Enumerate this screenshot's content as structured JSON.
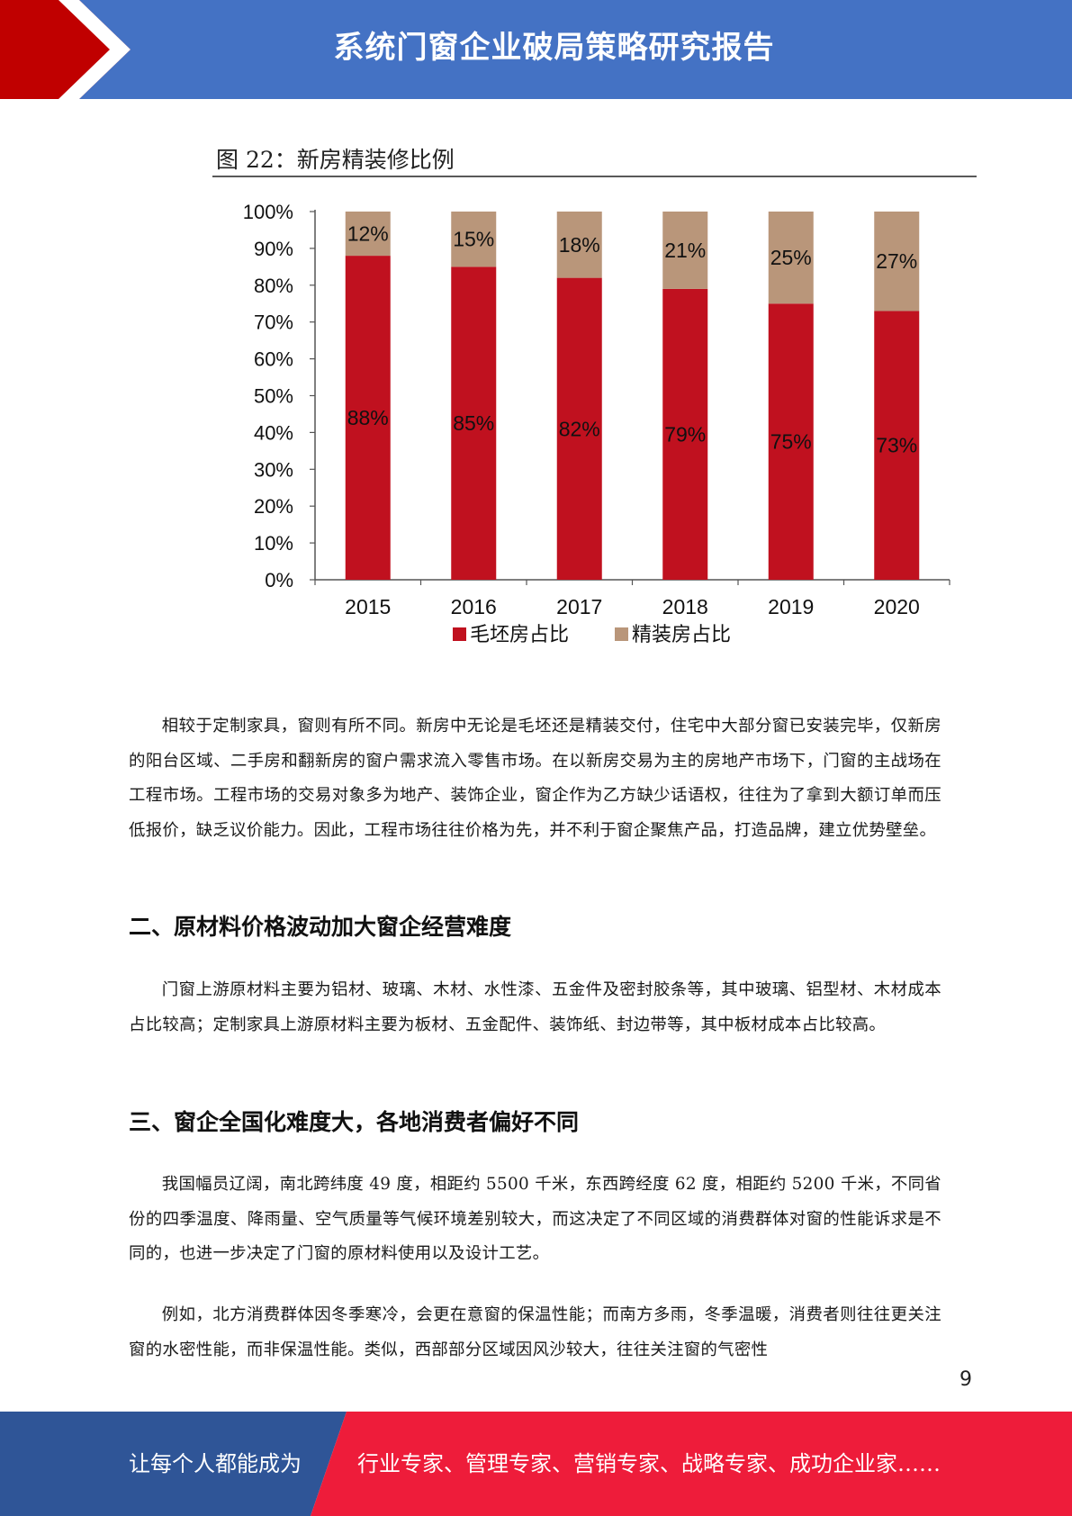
{
  "header": {
    "title": "系统门窗企业破局策略研究报告",
    "background_color": "#4472c4",
    "accent_color": "#c00000"
  },
  "figure": {
    "caption": "图 22：新房精装修比例"
  },
  "chart_data": {
    "type": "bar",
    "stacked": true,
    "categories": [
      "2015",
      "2016",
      "2017",
      "2018",
      "2019",
      "2020"
    ],
    "series": [
      {
        "name": "毛坯房占比",
        "values": [
          88,
          85,
          82,
          79,
          75,
          73
        ],
        "labels": [
          "88%",
          "85%",
          "82%",
          "79%",
          "75%",
          "73%"
        ],
        "color": "#c0111f"
      },
      {
        "name": "精装房占比",
        "values": [
          12,
          15,
          18,
          21,
          25,
          27
        ],
        "labels": [
          "12%",
          "15%",
          "18%",
          "21%",
          "25%",
          "27%"
        ],
        "color": "#b9967a"
      }
    ],
    "yticks": [
      "0%",
      "10%",
      "20%",
      "30%",
      "40%",
      "50%",
      "60%",
      "70%",
      "80%",
      "90%",
      "100%"
    ],
    "ylim": [
      0,
      100
    ],
    "legend_position": "bottom",
    "grid": false
  },
  "body": {
    "para1": "相较于定制家具，窗则有所不同。新房中无论是毛坯还是精装交付，住宅中大部分窗已安装完毕，仅新房的阳台区域、二手房和翻新房的窗户需求流入零售市场。在以新房交易为主的房地产市场下，门窗的主战场在工程市场。工程市场的交易对象多为地产、装饰企业，窗企作为乙方缺少话语权，往往为了拿到大额订单而压低报价，缺乏议价能力。因此，工程市场往往价格为先，并不利于窗企聚焦产品，打造品牌，建立优势壁垒。",
    "heading2": "二、原材料价格波动加大窗企经营难度",
    "para2": "门窗上游原材料主要为铝材、玻璃、木材、水性漆、五金件及密封胶条等，其中玻璃、铝型材、木材成本占比较高；定制家具上游原材料主要为板材、五金配件、装饰纸、封边带等，其中板材成本占比较高。",
    "heading3": "三、窗企全国化难度大，各地消费者偏好不同",
    "para3": "我国幅员辽阔，南北跨纬度 49 度，相距约 5500 千米，东西跨经度 62 度，相距约 5200 千米，不同省份的四季温度、降雨量、空气质量等气候环境差别较大，而这决定了不同区域的消费群体对窗的性能诉求是不同的，也进一步决定了门窗的原材料使用以及设计工艺。",
    "para4": "例如，北方消费群体因冬季寒冷，会更在意窗的保温性能；而南方多雨，冬季温暖，消费者则往往更关注窗的水密性能，而非保温性能。类似，西部部分区域因风沙较大，往往关注窗的气密性"
  },
  "page_number": "9",
  "footer": {
    "left_text": "让每个人都能成为",
    "right_text": "行业专家、管理专家、营销专家、战略专家、成功企业家……",
    "left_color": "#2f5597",
    "right_color": "#ee1c3a"
  }
}
